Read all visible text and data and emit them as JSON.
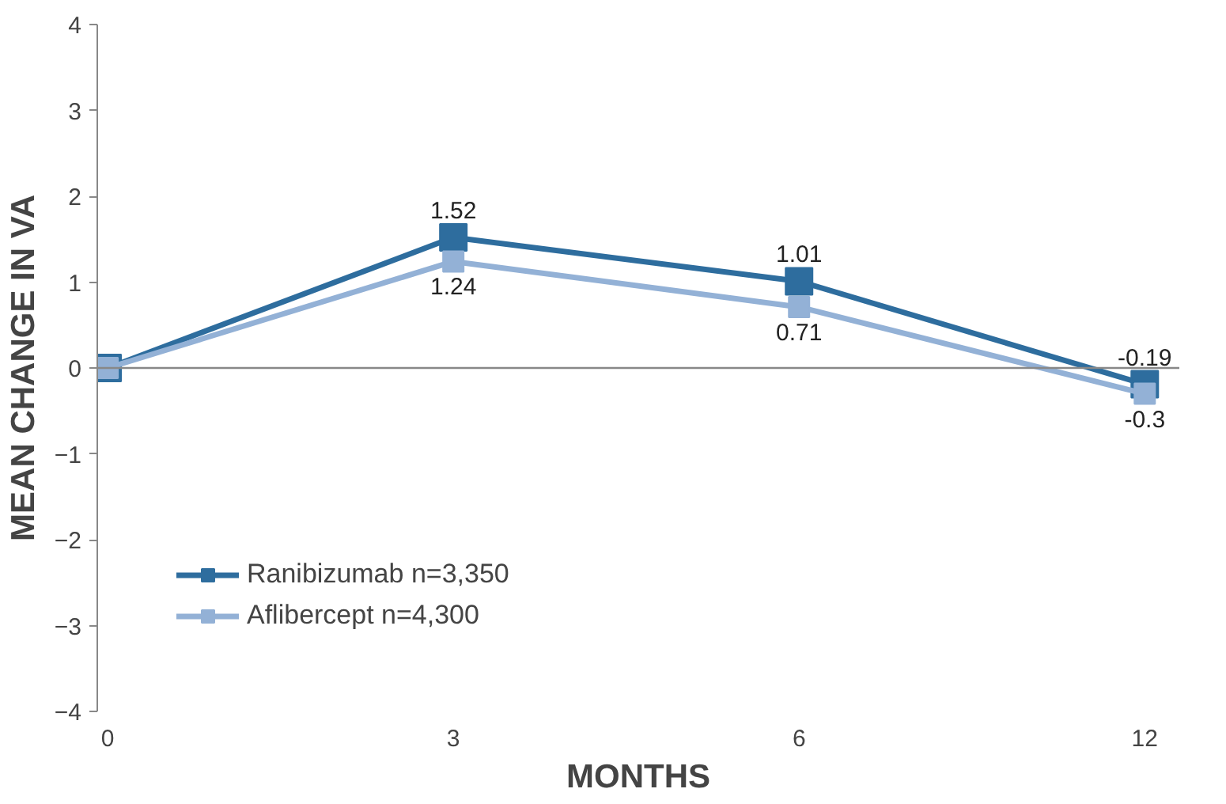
{
  "chart_data": {
    "type": "line",
    "xlabel": "MONTHS",
    "ylabel": "MEAN CHANGE IN VA",
    "categories": [
      "0",
      "3",
      "6",
      "12"
    ],
    "ylim": [
      -4,
      4
    ],
    "yticks": [
      -4,
      -3,
      -2,
      -1,
      0,
      1,
      2,
      3,
      4
    ],
    "series": [
      {
        "name": "Ranibizumab n=3,350",
        "color": "#2e6d9e",
        "values": [
          0,
          1.52,
          1.01,
          -0.19
        ],
        "value_labels": [
          null,
          "1.52",
          "1.01",
          "-0.19"
        ]
      },
      {
        "name": "Aflibercept n=4,300",
        "color": "#93b1d6",
        "values": [
          0,
          1.24,
          0.71,
          -0.3
        ],
        "value_labels": [
          null,
          "1.24",
          "0.71",
          "-0.3"
        ]
      }
    ],
    "ref_lines": [
      {
        "axis": "y",
        "value": 0,
        "color": "#888888"
      }
    ],
    "marker": "square",
    "line_style": "solid",
    "grid": false,
    "legend": "bottom left"
  }
}
